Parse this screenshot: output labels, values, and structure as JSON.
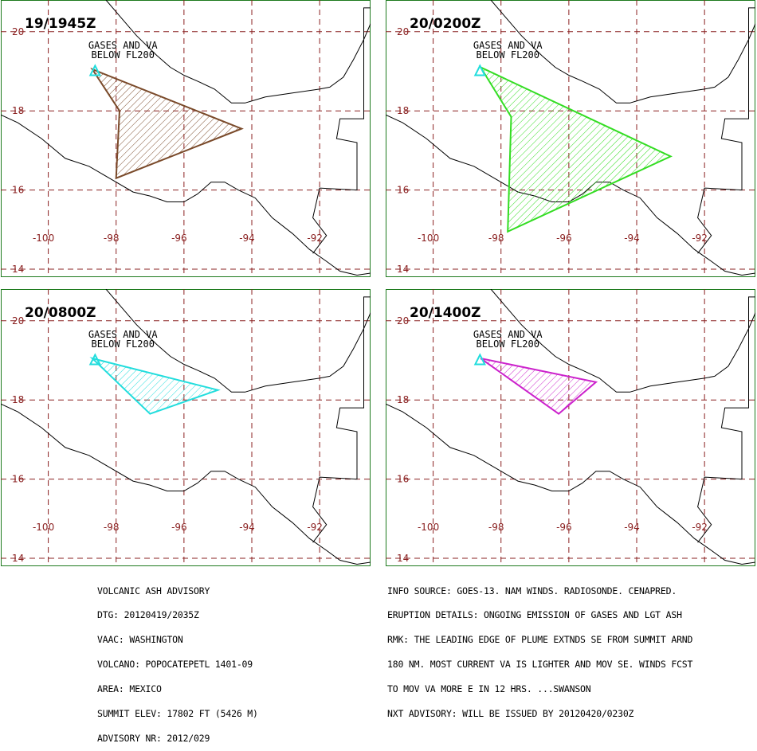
{
  "panels": [
    {
      "time": "19/1945Z",
      "label_line1": "GASES AND VA",
      "label_line2": "BELOW FL200",
      "plume_color": "#7a4a2a",
      "plume": [
        [
          -98.7,
          19.05
        ],
        [
          -97.9,
          18.0
        ],
        [
          -98.0,
          16.3
        ],
        [
          -94.3,
          17.55
        ]
      ]
    },
    {
      "time": "20/0200Z",
      "label_line1": "GASES AND VA",
      "label_line2": "BELOW FL200",
      "plume_color": "#33dd22",
      "plume": [
        [
          -98.6,
          19.1
        ],
        [
          -97.7,
          17.85
        ],
        [
          -97.8,
          14.95
        ],
        [
          -93.0,
          16.85
        ]
      ]
    },
    {
      "time": "20/0800Z",
      "label_line1": "GASES AND VA",
      "label_line2": "BELOW FL200",
      "plume_color": "#22dddd",
      "plume": [
        [
          -98.7,
          19.05
        ],
        [
          -97.0,
          17.65
        ],
        [
          -95.0,
          18.25
        ]
      ]
    },
    {
      "time": "20/1400Z",
      "label_line1": "GASES AND VA",
      "label_line2": "BELOW FL200",
      "plume_color": "#cc22cc",
      "plume": [
        [
          -98.6,
          19.05
        ],
        [
          -96.3,
          17.65
        ],
        [
          -95.2,
          18.45
        ]
      ]
    }
  ],
  "volcano": {
    "lon": -98.62,
    "lat": 19.02,
    "color": "#22dddd"
  },
  "map": {
    "lon_ticks": [
      "-100",
      "-98",
      "-96",
      "-94",
      "-92"
    ],
    "lat_ticks": [
      "14",
      "16",
      "18",
      "20"
    ],
    "grid_color": "#8a2020",
    "lon_range": [
      -101.4,
      -90.5
    ],
    "lat_range": [
      13.8,
      20.8
    ]
  },
  "advisory_left": [
    "VOLCANIC ASH ADVISORY",
    "DTG: 20120419/2035Z",
    "VAAC: WASHINGTON",
    "VOLCANO: POPOCATEPETL 1401-09",
    "AREA: MEXICO",
    "SUMMIT ELEV: 17802 FT (5426 M)",
    "ADVISORY NR: 2012/029"
  ],
  "advisory_right": [
    "INFO SOURCE: GOES-13. NAM WINDS. RADIOSONDE. CENAPRED.",
    "ERUPTION DETAILS: ONGOING EMISSION OF GASES AND LGT ASH",
    "RMK: THE LEADING EDGE OF PLUME EXTNDS SE FROM SUMMIT ARND",
    "180 NM. MOST CURRENT VA IS LIGHTER AND MOV SE. WINDS FCST",
    "TO MOV VA MORE E IN 12 HRS. ...SWANSON",
    "NXT ADVISORY: WILL BE ISSUED BY 20120420/0230Z"
  ]
}
